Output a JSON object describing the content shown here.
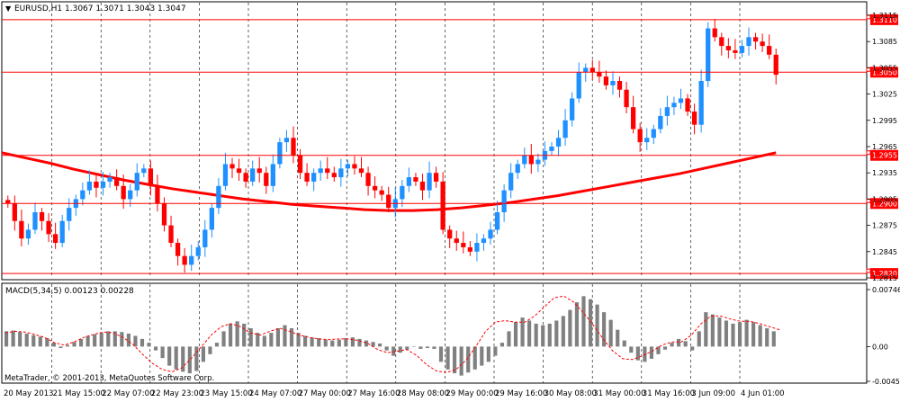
{
  "header": {
    "menu_arrow": "▼",
    "symbol": "EURUSD,H1",
    "ohlc": "1.3067 1.3071 1.3043 1.3047"
  },
  "indicator": {
    "label": "MACD(5,34,5) 0.00123 0.00228"
  },
  "copyright": "MetaTrader, © 2001-2013, MetaQuotes Software Corp.",
  "colors": {
    "bull": "#1e90ff",
    "bear": "#ff0000",
    "ma": "#ff0000",
    "level": "#ff0000",
    "macd_hist": "#808080",
    "macd_signal": "#ff0000",
    "grid": "#000000"
  },
  "chart_data": [
    {
      "type": "line",
      "panel": "price",
      "symbol": "EURUSD",
      "timeframe": "H1",
      "y_ticks": [
        "1.3115",
        "1.3085",
        "1.3055",
        "1.3025",
        "1.2995",
        "1.2965",
        "1.2935",
        "1.2905",
        "1.2875",
        "1.2845",
        "1.2815"
      ],
      "ylim": [
        1.2815,
        1.3115
      ],
      "x_ticks": [
        "20 May 2013",
        "21 May 15:00",
        "22 May 07:00",
        "22 May 23:00",
        "23 May 15:00",
        "24 May 07:00",
        "27 May 00:00",
        "27 May 16:00",
        "28 May 08:00",
        "29 May 00:00",
        "29 May 16:00",
        "30 May 08:00",
        "31 May 00:00",
        "31 May 16:00",
        "3 Jun 09:00",
        "4 Jun 01:00"
      ],
      "price_levels": [
        "1.3110",
        "1.3050",
        "1.2955",
        "1.2900",
        "1.2820"
      ],
      "series": [
        {
          "kind": "close",
          "values": [
            1.29,
            1.288,
            1.286,
            1.287,
            1.289,
            1.288,
            1.2865,
            1.2855,
            1.288,
            1.2895,
            1.2905,
            1.2915,
            1.2925,
            1.2918,
            1.2925,
            1.293,
            1.292,
            1.2905,
            1.2915,
            1.2935,
            1.294,
            1.292,
            1.29,
            1.2875,
            1.2855,
            1.284,
            1.283,
            1.284,
            1.285,
            1.287,
            1.2895,
            1.292,
            1.2945,
            1.294,
            1.2935,
            1.2925,
            1.294,
            1.2935,
            1.292,
            1.2945,
            1.297,
            1.2975,
            1.2955,
            1.2935,
            1.2925,
            1.2935,
            1.294,
            1.2935,
            1.293,
            1.294,
            1.2945,
            1.294,
            1.2935,
            1.292,
            1.2915,
            1.291,
            1.2895,
            1.2905,
            1.292,
            1.293,
            1.2925,
            1.2915,
            1.2935,
            1.2925,
            1.287,
            1.286,
            1.2855,
            1.285,
            1.2845,
            1.2855,
            1.286,
            1.287,
            1.289,
            1.2915,
            1.2935,
            1.2945,
            1.2955,
            1.2945,
            1.295,
            1.296,
            1.2965,
            1.2975,
            1.2995,
            1.302,
            1.305,
            1.3055,
            1.305,
            1.3045,
            1.3035,
            1.304,
            1.303,
            1.301,
            1.2985,
            1.297,
            1.2975,
            1.2985,
            1.3,
            1.301,
            1.3015,
            1.302,
            1.3005,
            1.299,
            1.304,
            1.31,
            1.309,
            1.308,
            1.3075,
            1.3072,
            1.308,
            1.309,
            1.3085,
            1.308,
            1.307,
            1.3047
          ]
        },
        {
          "kind": "moving_average",
          "values": [
            1.2958,
            1.2952,
            1.2946,
            1.2939,
            1.2933,
            1.2927,
            1.2922,
            1.2917,
            1.2913,
            1.2909,
            1.2905,
            1.2902,
            1.2899,
            1.2897,
            1.2895,
            1.2893,
            1.2892,
            1.2892,
            1.2893,
            1.2895,
            1.2898,
            1.2901,
            1.2905,
            1.2909,
            1.2914,
            1.2919,
            1.2924,
            1.2929,
            1.2934,
            1.294,
            1.2946,
            1.2952,
            1.2958
          ]
        }
      ]
    },
    {
      "type": "bar",
      "panel": "indicator",
      "name": "MACD(5,34,5)",
      "y_ticks": [
        "0.00746",
        "0.00",
        "-0.00455"
      ],
      "ylim": [
        -0.00455,
        0.00746
      ],
      "series": [
        {
          "kind": "histogram",
          "values": [
            0.002,
            0.0021,
            0.0019,
            0.0017,
            0.0015,
            0.0013,
            0.0011,
            0.0005,
            -0.0002,
            0.0002,
            0.0006,
            0.001,
            0.0014,
            0.0016,
            0.0018,
            0.002,
            0.002,
            0.0019,
            0.0017,
            0.0014,
            0.001,
            0.0005,
            -0.0005,
            -0.0015,
            -0.0025,
            -0.003,
            -0.0033,
            -0.0035,
            -0.0032,
            -0.002,
            -0.001,
            0.0005,
            0.002,
            0.003,
            0.0033,
            0.003,
            0.0024,
            0.0018,
            0.0014,
            0.0018,
            0.0024,
            0.0028,
            0.0024,
            0.0018,
            0.0014,
            0.0012,
            0.0011,
            0.0009,
            0.0008,
            0.0009,
            0.0011,
            0.0012,
            0.001,
            0.0008,
            0.0006,
            0.0004,
            -0.0005,
            -0.0012,
            -0.0008,
            -0.0004,
            0.0,
            -0.0003,
            -0.0002,
            -0.0003,
            -0.002,
            -0.003,
            -0.0035,
            -0.0038,
            -0.0034,
            -0.003,
            -0.0025,
            -0.002,
            -0.0012,
            0.0005,
            0.002,
            0.0032,
            0.0038,
            0.0034,
            0.003,
            0.0028,
            0.003,
            0.0034,
            0.004,
            0.0048,
            0.0058,
            0.0066,
            0.0062,
            0.0055,
            0.0045,
            0.0035,
            0.0022,
            0.0008,
            -0.0008,
            -0.0018,
            -0.002,
            -0.0016,
            -0.001,
            -0.0004,
            0.0005,
            0.001,
            0.0007,
            -0.0005,
            0.002,
            0.0045,
            0.0042,
            0.0038,
            0.0034,
            0.003,
            0.0032,
            0.0035,
            0.0032,
            0.0028,
            0.0024,
            0.002
          ]
        },
        {
          "kind": "signal",
          "values": [
            0.0018,
            0.002,
            0.0019,
            0.0016,
            0.0012,
            0.0005,
            0.0002,
            0.0006,
            0.0012,
            0.0016,
            0.0019,
            0.0018,
            0.0012,
            0.0003,
            -0.001,
            -0.0022,
            -0.003,
            -0.0033,
            -0.0028,
            -0.0015,
            0.0,
            0.0015,
            0.0026,
            0.003,
            0.0026,
            0.0018,
            0.0015,
            0.002,
            0.0024,
            0.002,
            0.0015,
            0.0012,
            0.001,
            0.0009,
            0.001,
            0.001,
            0.0008,
            0.0004,
            -0.0004,
            -0.0008,
            -0.0006,
            -0.0004,
            -0.0012,
            -0.0024,
            -0.0032,
            -0.0034,
            -0.003,
            -0.0018,
            0.0,
            0.002,
            0.0032,
            0.0034,
            0.0032,
            0.0032,
            0.004,
            0.0052,
            0.0064,
            0.0066,
            0.0058,
            0.0044,
            0.0028,
            0.001,
            -0.0006,
            -0.0016,
            -0.0017,
            -0.0012,
            -0.0006,
            0.0002,
            0.0006,
            0.0006,
            0.0015,
            0.003,
            0.004,
            0.004,
            0.0036,
            0.0033,
            0.0033,
            0.003,
            0.0026,
            0.0022
          ]
        }
      ]
    }
  ]
}
